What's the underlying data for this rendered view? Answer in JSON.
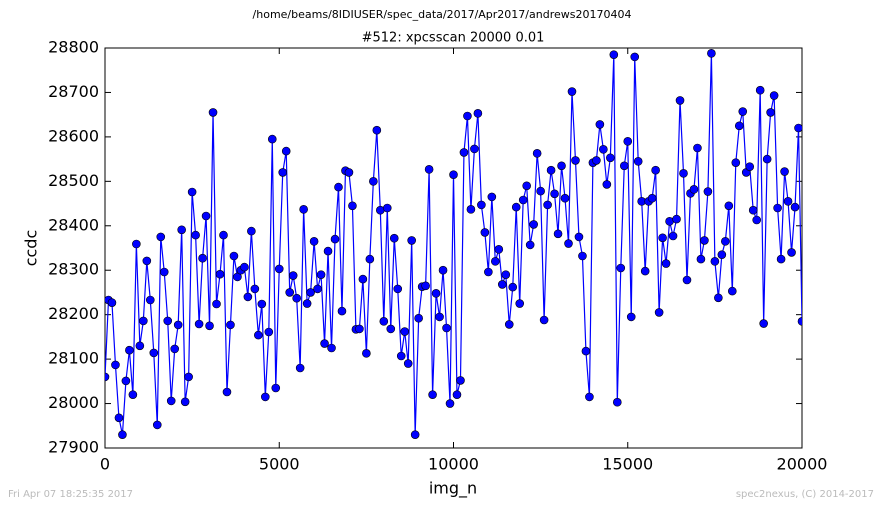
{
  "chart_data": {
    "type": "line",
    "suptitle": "/home/beams/8IDIUSER/spec_data/2017/Apr2017/andrews20170404",
    "title": "#512: xpcsscan 20000 0.01",
    "xlabel": "img_n",
    "ylabel": "ccdc",
    "footer_left": "Fri Apr 07 18:25:35 2017",
    "footer_right": "spec2nexus, (C) 2014-2017",
    "xlim": [
      0,
      20000
    ],
    "xticks": [
      0,
      5000,
      10000,
      15000,
      20000
    ],
    "ylim": [
      27900,
      28800
    ],
    "yticks": [
      27900,
      28000,
      28100,
      28200,
      28300,
      28400,
      28500,
      28600,
      28700,
      28800
    ],
    "x": [
      0,
      100,
      200,
      300,
      400,
      500,
      600,
      700,
      800,
      900,
      1000,
      1100,
      1200,
      1300,
      1400,
      1500,
      1600,
      1700,
      1800,
      1900,
      2000,
      2100,
      2200,
      2300,
      2400,
      2500,
      2600,
      2700,
      2800,
      2900,
      3000,
      3100,
      3200,
      3300,
      3400,
      3500,
      3600,
      3700,
      3800,
      3900,
      4000,
      4100,
      4200,
      4300,
      4400,
      4500,
      4600,
      4700,
      4800,
      4900,
      5000,
      5100,
      5200,
      5300,
      5400,
      5500,
      5600,
      5700,
      5800,
      5900,
      6000,
      6100,
      6200,
      6300,
      6400,
      6500,
      6600,
      6700,
      6800,
      6900,
      7000,
      7100,
      7200,
      7300,
      7400,
      7500,
      7600,
      7700,
      7800,
      7900,
      8000,
      8100,
      8200,
      8300,
      8400,
      8500,
      8600,
      8700,
      8800,
      8900,
      9000,
      9100,
      9200,
      9300,
      9400,
      9500,
      9600,
      9700,
      9800,
      9900,
      10000,
      10100,
      10200,
      10300,
      10400,
      10500,
      10600,
      10700,
      10800,
      10900,
      11000,
      11100,
      11200,
      11300,
      11400,
      11500,
      11600,
      11700,
      11800,
      11900,
      12000,
      12100,
      12200,
      12300,
      12400,
      12500,
      12600,
      12700,
      12800,
      12900,
      13000,
      13100,
      13200,
      13300,
      13400,
      13500,
      13600,
      13700,
      13800,
      13900,
      14000,
      14100,
      14200,
      14300,
      14400,
      14500,
      14600,
      14700,
      14800,
      14900,
      15000,
      15100,
      15200,
      15300,
      15400,
      15500,
      15600,
      15700,
      15800,
      15900,
      16000,
      16100,
      16200,
      16300,
      16400,
      16500,
      16600,
      16700,
      16800,
      16900,
      17000,
      17100,
      17200,
      17300,
      17400,
      17500,
      17600,
      17700,
      17800,
      17900,
      18000,
      18100,
      18200,
      18300,
      18400,
      18500,
      18600,
      18700,
      18800,
      18900,
      19000,
      19100,
      19200,
      19300,
      19400,
      19500,
      19600,
      19700,
      19800,
      19900,
      20000
    ],
    "series": [
      {
        "name": "ccdc",
        "color": "#0000ff",
        "values": [
          28060,
          28233,
          28227,
          28087,
          27968,
          27930,
          28051,
          28120,
          28020,
          28359,
          28130,
          28186,
          28321,
          28233,
          28114,
          27952,
          28375,
          28296,
          28186,
          28006,
          28123,
          28177,
          28391,
          28004,
          28060,
          28476,
          28379,
          28179,
          28327,
          28422,
          28175,
          28655,
          28224,
          28291,
          28379,
          28026,
          28177,
          28332,
          28285,
          28300,
          28307,
          28240,
          28388,
          28258,
          28154,
          28224,
          28015,
          28161,
          28595,
          28035,
          28303,
          28520,
          28568,
          28250,
          28288,
          28237,
          28080,
          28437,
          28225,
          28250,
          28365,
          28258,
          28290,
          28135,
          28343,
          28125,
          28370,
          28487,
          28208,
          28524,
          28520,
          28445,
          28167,
          28168,
          28280,
          28113,
          28325,
          28500,
          28615,
          28435,
          28185,
          28440,
          28168,
          28372,
          28258,
          28107,
          28162,
          28090,
          28367,
          27930,
          28192,
          28263,
          28265,
          28527,
          28020,
          28248,
          28195,
          28300,
          28170,
          28000,
          28515,
          28020,
          28052,
          28565,
          28647,
          28437,
          28573,
          28653,
          28447,
          28385,
          28296,
          28465,
          28320,
          28347,
          28268,
          28290,
          28178,
          28262,
          28442,
          28225,
          28458,
          28490,
          28357,
          28403,
          28563,
          28478,
          28188,
          28447,
          28525,
          28472,
          28382,
          28535,
          28462,
          28360,
          28702,
          28547,
          28375,
          28332,
          28118,
          28015,
          28542,
          28547,
          28628,
          28572,
          28493,
          28553,
          28785,
          28003,
          28305,
          28535,
          28590,
          28195,
          28780,
          28545,
          28455,
          28298,
          28455,
          28462,
          28525,
          28205,
          28373,
          28315,
          28410,
          28377,
          28415,
          28682,
          28518,
          28278,
          28473,
          28482,
          28575,
          28325,
          28367,
          28477,
          28788,
          28320,
          28238,
          28335,
          28365,
          28445,
          28253,
          28542,
          28625,
          28657,
          28520,
          28533,
          28435,
          28413,
          28705,
          28180,
          28550,
          28655,
          28693,
          28440,
          28325,
          28522,
          28455,
          28340,
          28442,
          28620,
          28185
        ]
      }
    ]
  }
}
